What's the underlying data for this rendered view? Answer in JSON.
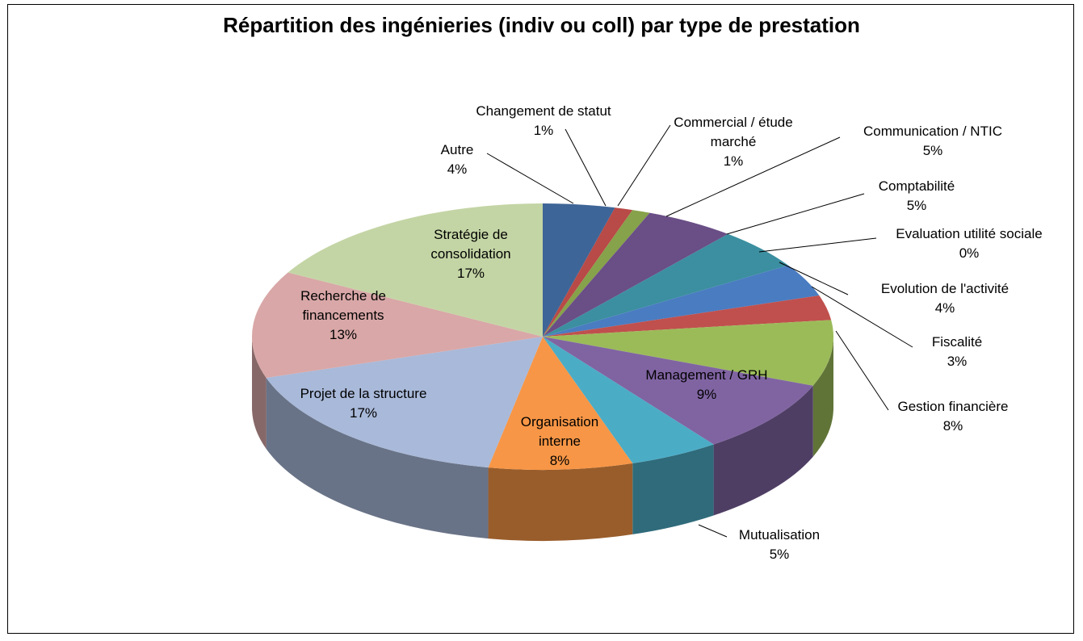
{
  "chart_data": {
    "type": "pie3d",
    "title": "Répartition des ingénieries (indiv ou coll) par type de prestation",
    "categories": [
      "Autre",
      "Changement de statut",
      "Commercial / étude marché",
      "Communication / NTIC",
      "Comptabilité",
      "Evaluation utilité sociale",
      "Evolution de l'activité",
      "Fiscalité",
      "Gestion financière",
      "Management / GRH",
      "Mutualisation",
      "Organisation interne",
      "Projet de la structure",
      "Recherche de financements",
      "Stratégie de consolidation"
    ],
    "values": [
      4,
      1,
      1,
      5,
      5,
      0,
      4,
      3,
      8,
      9,
      5,
      8,
      17,
      13,
      17
    ],
    "value_labels": [
      "4%",
      "1%",
      "1%",
      "5%",
      "5%",
      "0%",
      "4%",
      "3%",
      "8%",
      "9%",
      "5%",
      "8%",
      "17%",
      "13%",
      "17%"
    ],
    "colors": [
      "#3e6597",
      "#b84a47",
      "#86a24a",
      "#6a4e86",
      "#3b8fa0",
      "#e08a34",
      "#4a7cc1",
      "#c0504d",
      "#9bbb59",
      "#8064a2",
      "#4bacc6",
      "#f79646",
      "#a9b9d9",
      "#d9a7a7",
      "#c4d5a5"
    ]
  }
}
